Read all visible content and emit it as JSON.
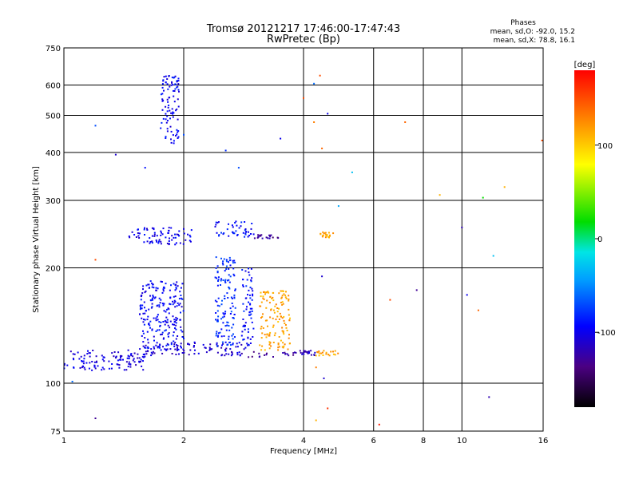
{
  "chart_data": {
    "type": "scatter",
    "title": "Tromsø 20121217 17:46:00-17:47:43",
    "subtitle": "RwPretec (Bp)",
    "xlabel": "Frequency [MHz]",
    "ylabel": "Stationary phase Virtual Height [km]",
    "x_scale": "log",
    "y_scale": "log",
    "xlim": [
      1,
      16
    ],
    "ylim": [
      75,
      750
    ],
    "x_ticks": [
      1,
      2,
      4,
      6,
      8,
      10,
      16
    ],
    "x_tick_labels": [
      "1",
      "2",
      "4",
      "6",
      "8",
      "10",
      "16"
    ],
    "y_ticks": [
      75,
      100,
      200,
      300,
      400,
      500,
      600,
      750
    ],
    "y_tick_labels": [
      "75",
      "100",
      "200",
      "300",
      "400",
      "500",
      "600",
      "750"
    ],
    "grid": true,
    "stats": {
      "header": "Phases",
      "line_o": "mean, sd,O: -92.0, 15.2",
      "line_x": "mean, sd,X:  78.8, 16.1"
    },
    "colorbar": {
      "label": "[deg]",
      "range": [
        -180,
        180
      ],
      "ticks": [
        100,
        0,
        -100
      ],
      "tick_labels": [
        "100",
        "0",
        "-100"
      ]
    },
    "clusters": [
      {
        "f": [
          1.0,
          1.6
        ],
        "h": [
          108,
          122
        ],
        "phase": -105
      },
      {
        "f": [
          1.6,
          2.9
        ],
        "h": [
          118,
          128
        ],
        "phase": -110
      },
      {
        "f": [
          2.9,
          3.9
        ],
        "h": [
          117,
          121
        ],
        "phase": -130
      },
      {
        "f": [
          3.9,
          4.3
        ],
        "h": [
          118,
          122
        ],
        "phase": -110
      },
      {
        "f": [
          4.3,
          5.0
        ],
        "h": [
          118,
          122
        ],
        "phase": 115
      },
      {
        "f": [
          1.55,
          2.0
        ],
        "h": [
          122,
          185
        ],
        "phase": -95
      },
      {
        "f": [
          2.4,
          2.7
        ],
        "h": [
          125,
          215
        ],
        "phase": -80
      },
      {
        "f": [
          2.8,
          3.0
        ],
        "h": [
          125,
          200
        ],
        "phase": -90
      },
      {
        "f": [
          3.1,
          3.7
        ],
        "h": [
          122,
          175
        ],
        "phase": 115
      },
      {
        "f": [
          1.75,
          1.95
        ],
        "h": [
          420,
          640
        ],
        "phase": -95
      },
      {
        "f": [
          1.45,
          2.1
        ],
        "h": [
          230,
          255
        ],
        "phase": -100
      },
      {
        "f": [
          2.4,
          3.0
        ],
        "h": [
          240,
          265
        ],
        "phase": -90
      },
      {
        "f": [
          3.0,
          3.5
        ],
        "h": [
          238,
          244
        ],
        "phase": -130
      },
      {
        "f": [
          4.4,
          4.8
        ],
        "h": [
          240,
          248
        ],
        "phase": 115
      }
    ],
    "scattered_points": [
      {
        "x": 1.2,
        "y": 470,
        "phase": -70
      },
      {
        "x": 1.35,
        "y": 395,
        "phase": -110
      },
      {
        "x": 1.6,
        "y": 365,
        "phase": -90
      },
      {
        "x": 2.0,
        "y": 445,
        "phase": -70
      },
      {
        "x": 2.55,
        "y": 405,
        "phase": -80
      },
      {
        "x": 2.75,
        "y": 365,
        "phase": -70
      },
      {
        "x": 3.5,
        "y": 435,
        "phase": -100
      },
      {
        "x": 4.0,
        "y": 555,
        "phase": 150
      },
      {
        "x": 4.25,
        "y": 605,
        "phase": -60
      },
      {
        "x": 4.25,
        "y": 480,
        "phase": 130
      },
      {
        "x": 4.4,
        "y": 635,
        "phase": 150
      },
      {
        "x": 4.45,
        "y": 410,
        "phase": 140
      },
      {
        "x": 4.6,
        "y": 505,
        "phase": -100
      },
      {
        "x": 5.3,
        "y": 355,
        "phase": -30
      },
      {
        "x": 7.2,
        "y": 480,
        "phase": 140
      },
      {
        "x": 8.8,
        "y": 310,
        "phase": 110
      },
      {
        "x": 11.3,
        "y": 305,
        "phase": 20
      },
      {
        "x": 12.8,
        "y": 325,
        "phase": 110
      },
      {
        "x": 15.9,
        "y": 430,
        "phase": 150
      },
      {
        "x": 1.2,
        "y": 210,
        "phase": 150
      },
      {
        "x": 4.45,
        "y": 190,
        "phase": -110
      },
      {
        "x": 4.9,
        "y": 290,
        "phase": -40
      },
      {
        "x": 6.6,
        "y": 165,
        "phase": 150
      },
      {
        "x": 7.7,
        "y": 175,
        "phase": -130
      },
      {
        "x": 10.3,
        "y": 170,
        "phase": -100
      },
      {
        "x": 11.0,
        "y": 155,
        "phase": 140
      },
      {
        "x": 12.0,
        "y": 215,
        "phase": -30
      },
      {
        "x": 10.0,
        "y": 255,
        "phase": -120
      },
      {
        "x": 4.3,
        "y": 110,
        "phase": 130
      },
      {
        "x": 4.5,
        "y": 103,
        "phase": -110
      },
      {
        "x": 4.6,
        "y": 86,
        "phase": 160
      },
      {
        "x": 4.3,
        "y": 80,
        "phase": 110
      },
      {
        "x": 6.2,
        "y": 78,
        "phase": 170
      },
      {
        "x": 11.7,
        "y": 92,
        "phase": -120
      },
      {
        "x": 1.2,
        "y": 81,
        "phase": -130
      },
      {
        "x": 1.05,
        "y": 101,
        "phase": -60
      }
    ]
  }
}
